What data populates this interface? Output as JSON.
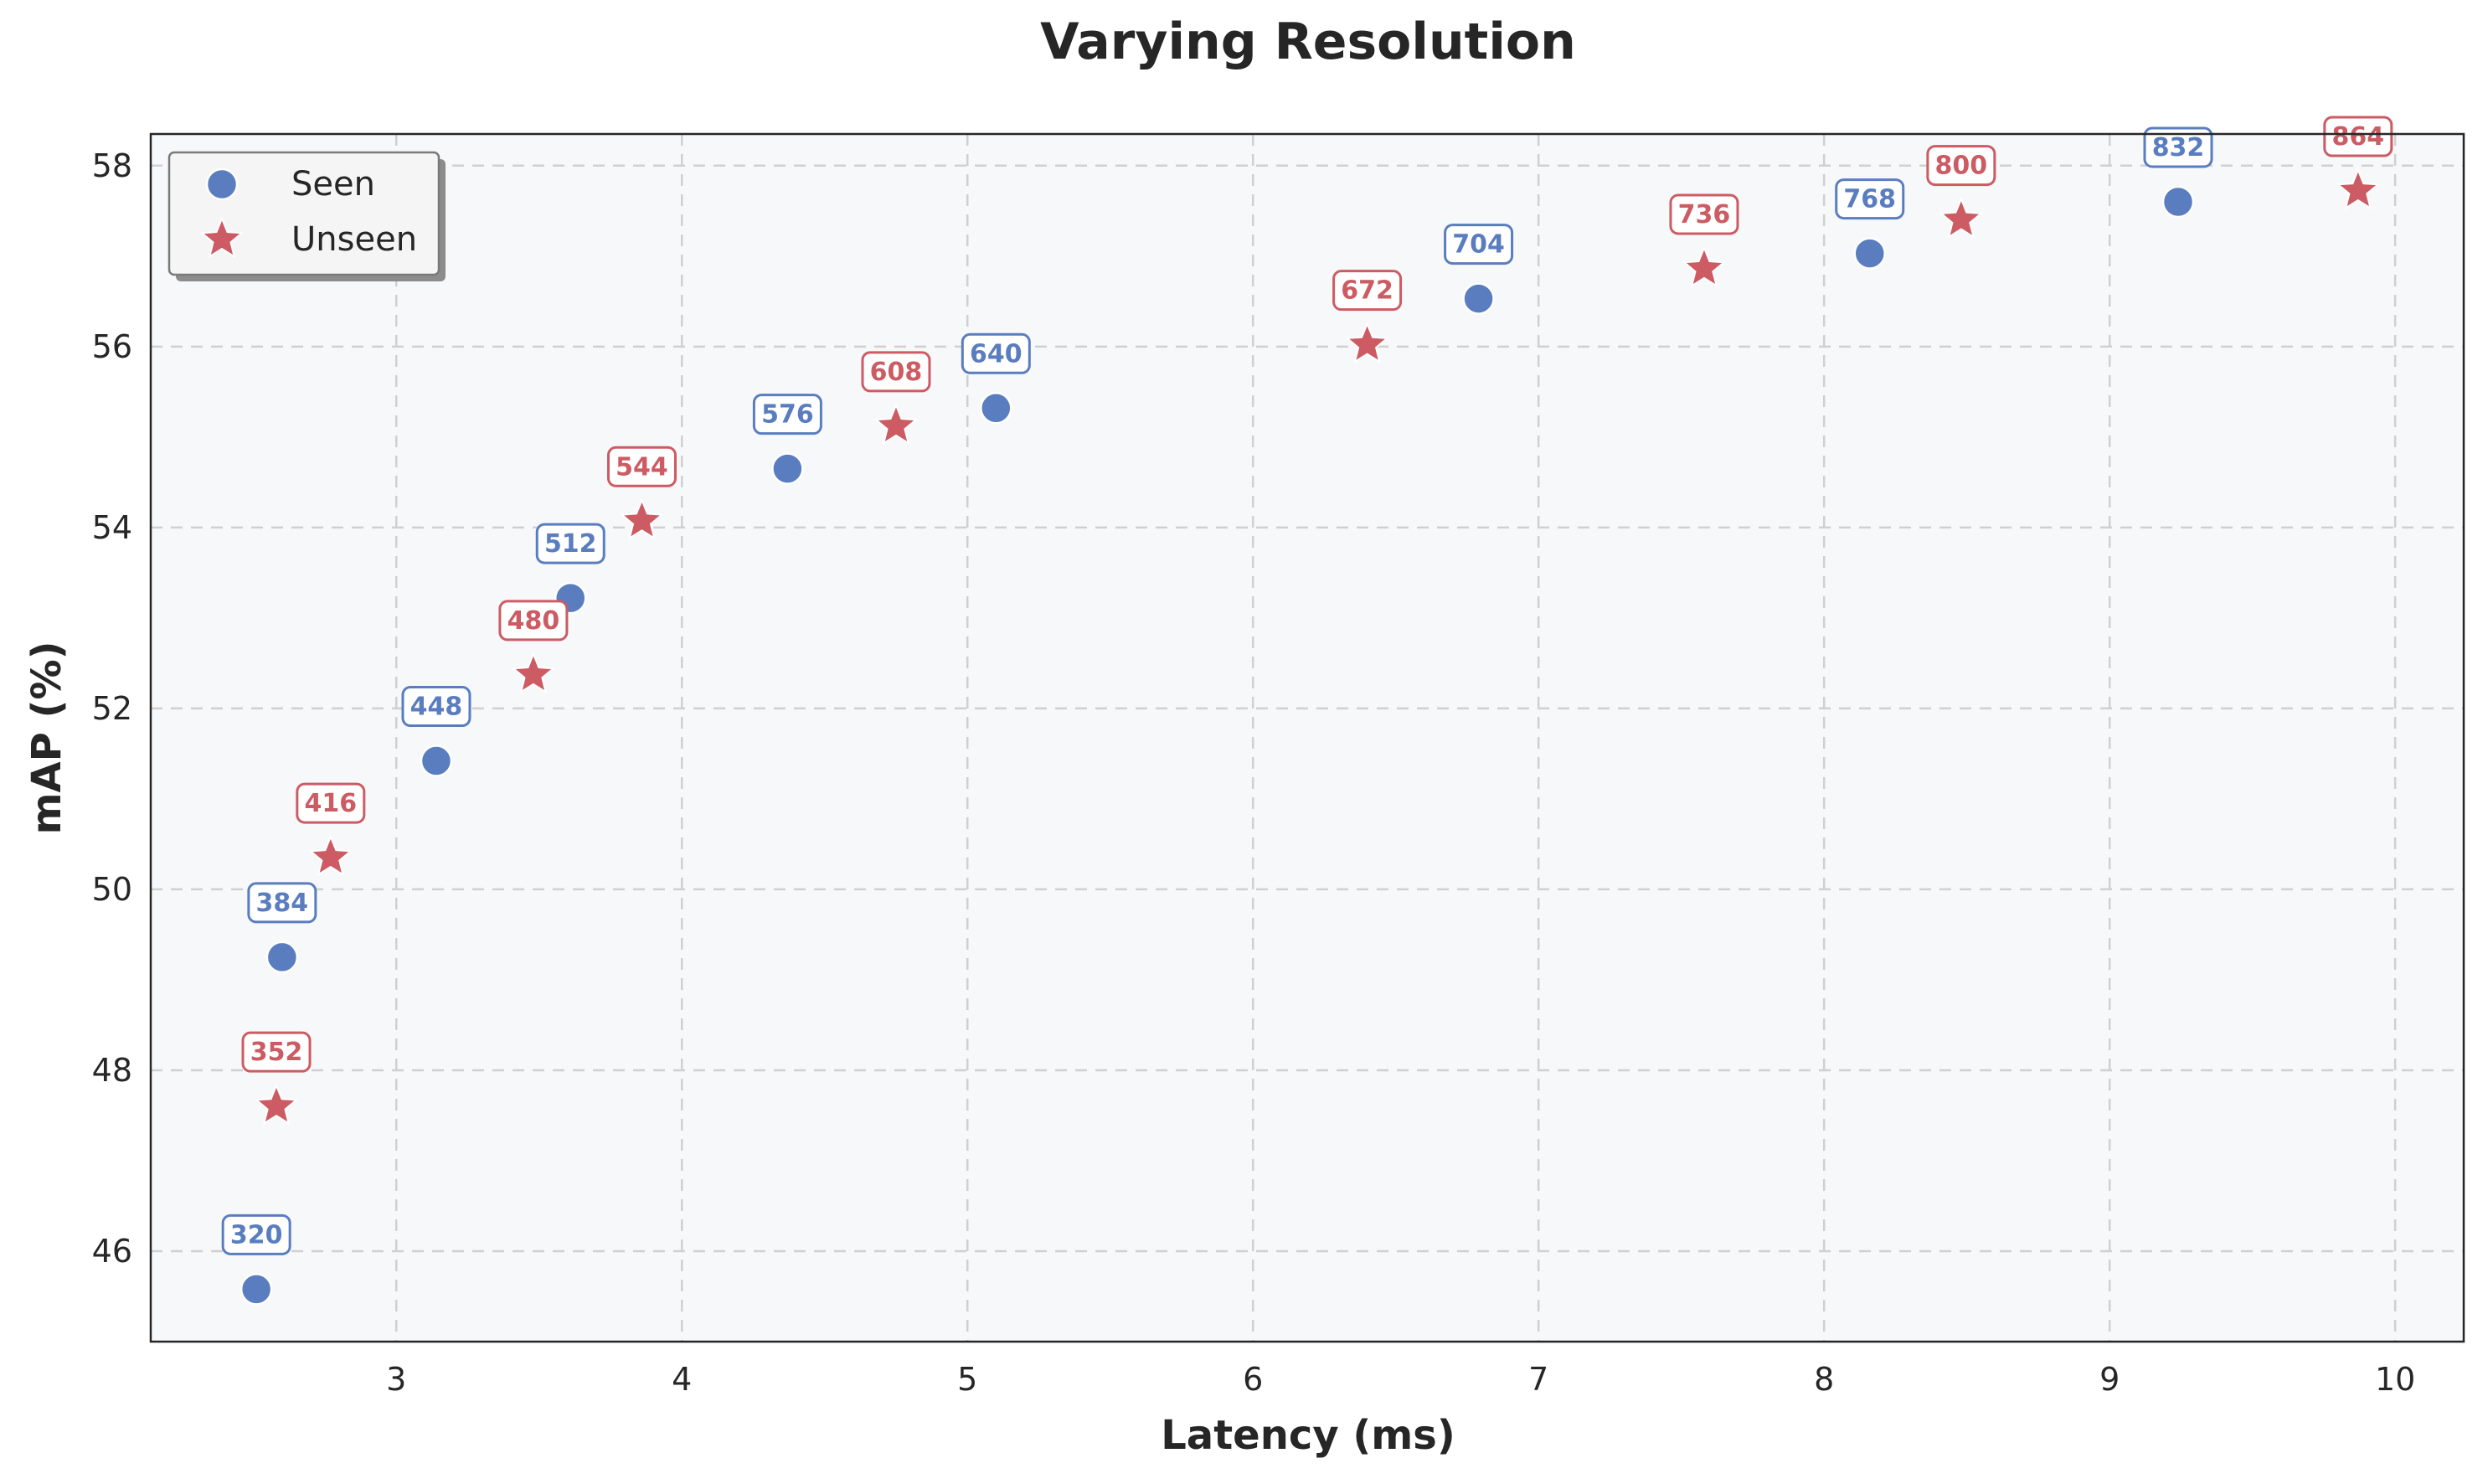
{
  "chart_data": {
    "type": "scatter",
    "title": "Varying Resolution",
    "xlabel": "Latency (ms)",
    "ylabel": "mAP (%)",
    "xlim": [
      2.14,
      10.24
    ],
    "ylim": [
      45.0,
      58.35
    ],
    "xticks": [
      3,
      4,
      5,
      6,
      7,
      8,
      9,
      10
    ],
    "yticks": [
      46,
      48,
      50,
      52,
      54,
      56,
      58
    ],
    "grid": true,
    "legend_position": "top-left",
    "colors": {
      "seen": "#5a7dbf",
      "unseen": "#cc5b63",
      "plot_bg": "#f7f8fa"
    },
    "series": [
      {
        "name": "Seen",
        "marker": "circle",
        "points": [
          {
            "x": 2.51,
            "y": 45.58,
            "label": "320"
          },
          {
            "x": 2.6,
            "y": 49.25,
            "label": "384"
          },
          {
            "x": 3.14,
            "y": 51.42,
            "label": "448"
          },
          {
            "x": 3.61,
            "y": 53.22,
            "label": "512"
          },
          {
            "x": 4.37,
            "y": 54.65,
            "label": "576"
          },
          {
            "x": 5.1,
            "y": 55.32,
            "label": "640"
          },
          {
            "x": 6.79,
            "y": 56.53,
            "label": "704"
          },
          {
            "x": 8.16,
            "y": 57.03,
            "label": "768"
          },
          {
            "x": 9.24,
            "y": 57.6,
            "label": "832"
          }
        ]
      },
      {
        "name": "Unseen",
        "marker": "star",
        "points": [
          {
            "x": 2.58,
            "y": 47.6,
            "label": "352"
          },
          {
            "x": 2.77,
            "y": 50.35,
            "label": "416"
          },
          {
            "x": 3.48,
            "y": 52.37,
            "label": "480"
          },
          {
            "x": 3.86,
            "y": 54.07,
            "label": "544"
          },
          {
            "x": 4.75,
            "y": 55.12,
            "label": "608"
          },
          {
            "x": 6.4,
            "y": 56.02,
            "label": "672"
          },
          {
            "x": 7.58,
            "y": 56.86,
            "label": "736"
          },
          {
            "x": 8.48,
            "y": 57.4,
            "label": "800"
          },
          {
            "x": 9.87,
            "y": 57.72,
            "label": "864"
          }
        ]
      }
    ]
  }
}
